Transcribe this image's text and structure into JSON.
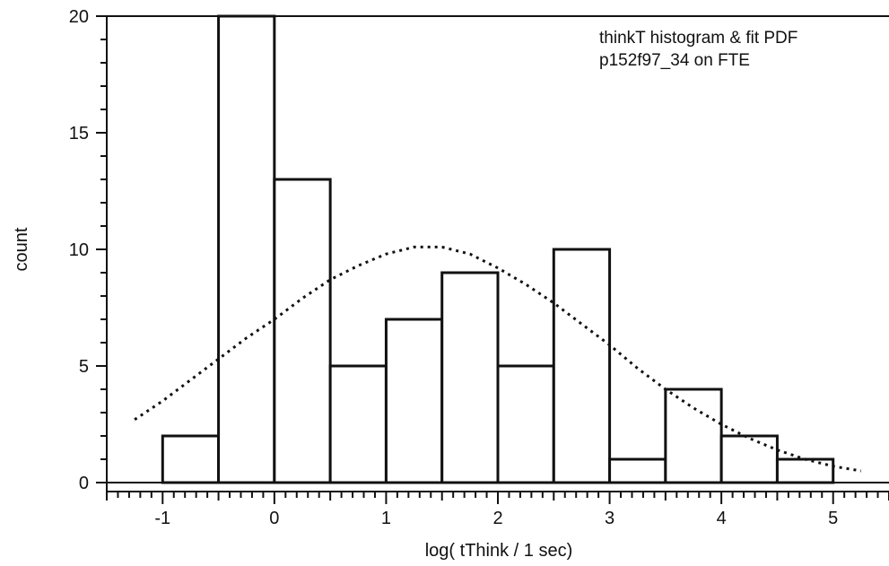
{
  "chart_data": {
    "type": "bar",
    "subtype": "histogram-with-fit",
    "annotation": [
      "thinkT histogram & fit PDF",
      "p152f97_34 on FTE"
    ],
    "xlabel": "log( tThink / 1 sec)",
    "ylabel": "count",
    "xlim": [
      -1.5,
      5.5
    ],
    "ylim": [
      0,
      20
    ],
    "x_ticks": [
      -1,
      0,
      1,
      2,
      3,
      4,
      5
    ],
    "y_ticks": [
      0,
      5,
      10,
      15,
      20
    ],
    "bins": [
      {
        "x0": -1.0,
        "x1": -0.5,
        "count": 2
      },
      {
        "x0": -0.5,
        "x1": 0.0,
        "count": 20
      },
      {
        "x0": 0.0,
        "x1": 0.5,
        "count": 13
      },
      {
        "x0": 0.5,
        "x1": 1.0,
        "count": 5
      },
      {
        "x0": 1.0,
        "x1": 1.5,
        "count": 7
      },
      {
        "x0": 1.5,
        "x1": 2.0,
        "count": 9
      },
      {
        "x0": 2.0,
        "x1": 2.5,
        "count": 5
      },
      {
        "x0": 2.5,
        "x1": 3.0,
        "count": 10
      },
      {
        "x0": 3.0,
        "x1": 3.5,
        "count": 1
      },
      {
        "x0": 3.5,
        "x1": 4.0,
        "count": 4
      },
      {
        "x0": 4.0,
        "x1": 4.5,
        "count": 2
      },
      {
        "x0": 4.5,
        "x1": 5.0,
        "count": 1
      }
    ],
    "fit_curve": {
      "style": "dotted",
      "x": [
        -1.25,
        -1.0,
        -0.75,
        -0.5,
        -0.25,
        0.0,
        0.25,
        0.5,
        0.75,
        1.0,
        1.25,
        1.5,
        1.75,
        2.0,
        2.25,
        2.5,
        2.75,
        3.0,
        3.25,
        3.5,
        3.75,
        4.0,
        4.25,
        4.5,
        4.75,
        5.0,
        5.25
      ],
      "y": [
        2.7,
        3.5,
        4.4,
        5.3,
        6.2,
        7.0,
        7.9,
        8.7,
        9.3,
        9.8,
        10.1,
        10.1,
        9.8,
        9.2,
        8.5,
        7.7,
        6.8,
        5.9,
        4.9,
        4.0,
        3.2,
        2.5,
        1.9,
        1.4,
        1.0,
        0.7,
        0.5
      ]
    },
    "grid": false,
    "colors": {
      "bar_fill": "#ffffff",
      "bar_stroke": "#111111",
      "fit_line": "#111111",
      "axis": "#111111"
    }
  }
}
